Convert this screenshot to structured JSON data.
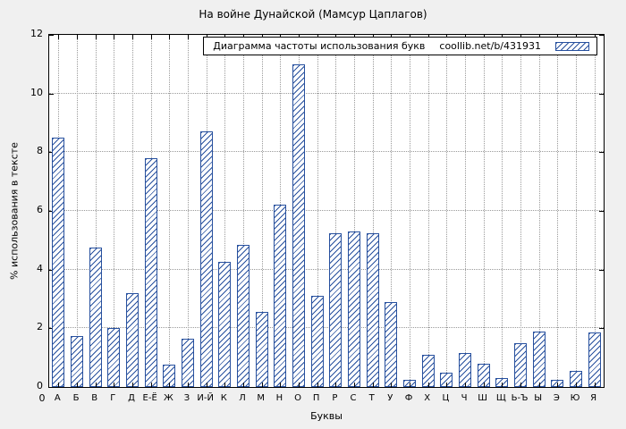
{
  "colors": {
    "accent": "#27509e",
    "grid": "#9a9a9a",
    "background": "#f0f0f0",
    "plot_background": "#ffffff",
    "border": "#000000"
  },
  "chart_data": {
    "type": "bar",
    "title": "На войне Дунайской (Мамсур Цаплагов)",
    "legend_label": "Диаграмма частоты использования букв",
    "legend_note": "coollib.net/b/431931",
    "xlabel": "Буквы",
    "ylabel": "% использования в тексте",
    "origin_tick": "0",
    "ylim": [
      0,
      12
    ],
    "yticks": [
      0,
      2,
      4,
      6,
      8,
      10,
      12
    ],
    "grid": true,
    "legend_position": "top-right",
    "categories": [
      "А",
      "Б",
      "В",
      "Г",
      "Д",
      "Е-Ё",
      "Ж",
      "З",
      "И-Й",
      "К",
      "Л",
      "М",
      "Н",
      "О",
      "П",
      "Р",
      "С",
      "Т",
      "У",
      "Ф",
      "Х",
      "Ц",
      "Ч",
      "Ш",
      "Щ",
      "Ь-Ъ",
      "Ы",
      "Э",
      "Ю",
      "Я"
    ],
    "values": [
      8.5,
      1.75,
      4.75,
      2.0,
      3.2,
      7.8,
      0.75,
      1.65,
      8.7,
      4.25,
      4.85,
      2.55,
      6.2,
      11.0,
      3.1,
      5.25,
      5.3,
      5.25,
      2.9,
      0.25,
      1.1,
      0.5,
      1.15,
      0.8,
      0.3,
      1.5,
      1.9,
      0.25,
      0.55,
      1.85
    ]
  }
}
